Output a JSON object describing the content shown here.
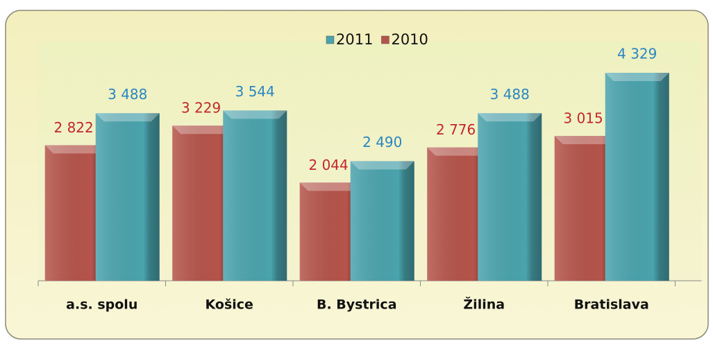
{
  "chart_data": {
    "type": "bar",
    "categories": [
      "a.s. spolu",
      "Košice",
      "B. Bystrica",
      "Žilina",
      "Bratislava"
    ],
    "series": [
      {
        "name": "2011",
        "color": "#4aa3ad",
        "label_color": "#2a86c2",
        "values": [
          3488,
          3544,
          2490,
          3488,
          4329
        ],
        "value_labels": [
          "3 488",
          "3 544",
          "2 490",
          "3 488",
          "4 329"
        ]
      },
      {
        "name": "2010",
        "color": "#b5544a",
        "label_color": "#c3262c",
        "values": [
          2822,
          3229,
          2044,
          2776,
          3015
        ],
        "value_labels": [
          "2 822",
          "3 229",
          "2 044",
          "2 776",
          "3 015"
        ]
      }
    ],
    "ylim": [
      0,
      5000
    ],
    "legend": "top"
  }
}
